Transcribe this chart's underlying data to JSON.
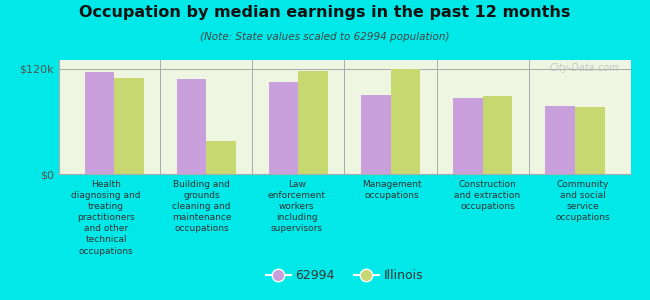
{
  "title": "Occupation by median earnings in the past 12 months",
  "subtitle": "(Note: State values scaled to 62994 population)",
  "background_color": "#00e8e8",
  "chart_bg_color": "#eef5e0",
  "categories": [
    "Health\ndiagnosing and\ntreating\npractitioners\nand other\ntechnical\noccupations",
    "Building and\ngrounds\ncleaning and\nmaintenance\noccupations",
    "Law\nenforcement\nworkers\nincluding\nsupervisors",
    "Management\noccupations",
    "Construction\nand extraction\noccupations",
    "Community\nand social\nservice\noccupations"
  ],
  "values_62994": [
    116000,
    108000,
    105000,
    90000,
    87000,
    78000
  ],
  "values_illinois": [
    110000,
    38000,
    118000,
    120000,
    89000,
    76000
  ],
  "color_62994": "#c9a0dc",
  "color_illinois": "#c8d870",
  "ylim": [
    0,
    130000
  ],
  "yticks": [
    0,
    120000
  ],
  "ytick_labels": [
    "$0",
    "$120k"
  ],
  "legend_label_62994": "62994",
  "legend_label_illinois": "Illinois",
  "watermark": "City-Data.com"
}
